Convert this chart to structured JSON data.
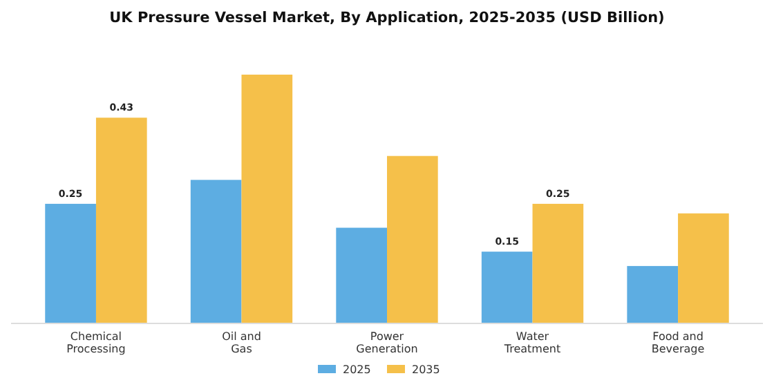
{
  "chart_data": {
    "type": "bar",
    "title": "UK Pressure Vessel Market, By Application, 2025-2035 (USD Billion)",
    "categories": [
      "Chemical Processing",
      "Oil and Gas",
      "Power Generation",
      "Water Treatment",
      "Food and Beverage"
    ],
    "series": [
      {
        "name": "2025",
        "color": "#5dade2",
        "values": [
          0.25,
          0.3,
          0.2,
          0.15,
          0.12
        ],
        "value_labels": [
          "0.25",
          null,
          null,
          "0.15",
          null
        ]
      },
      {
        "name": "2035",
        "color": "#f5c04a",
        "values": [
          0.43,
          0.52,
          0.35,
          0.25,
          0.23
        ],
        "value_labels": [
          "0.43",
          null,
          null,
          "0.25",
          null
        ]
      }
    ],
    "legend": "bottom"
  }
}
